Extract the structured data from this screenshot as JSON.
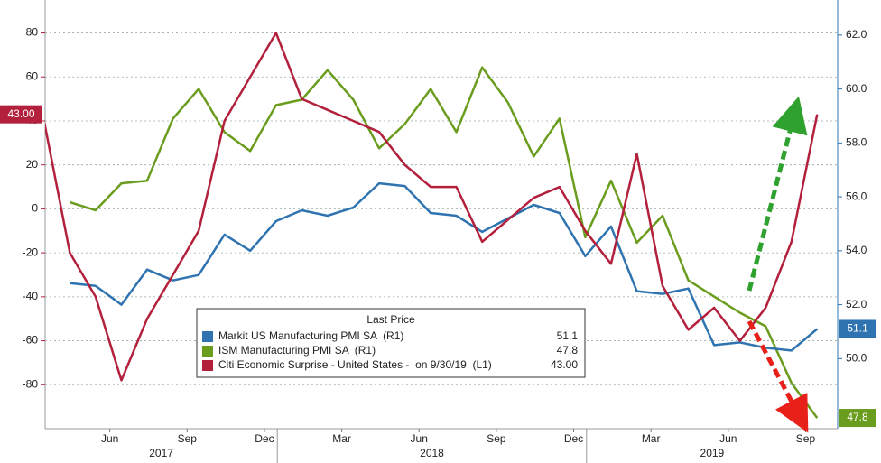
{
  "chart_data": {
    "type": "line",
    "legend_title": "Last Price",
    "x": [
      "2017-03",
      "2017-04",
      "2017-05",
      "2017-06",
      "2017-07",
      "2017-08",
      "2017-09",
      "2017-10",
      "2017-11",
      "2017-12",
      "2018-01",
      "2018-02",
      "2018-03",
      "2018-04",
      "2018-05",
      "2018-06",
      "2018-07",
      "2018-08",
      "2018-09",
      "2018-10",
      "2018-11",
      "2018-12",
      "2019-01",
      "2019-02",
      "2019-03",
      "2019-04",
      "2019-05",
      "2019-06",
      "2019-07",
      "2019-08",
      "2019-09"
    ],
    "xlim": [
      "2017-03",
      "2019-10"
    ],
    "xticks": [
      {
        "value": "2017-06",
        "label": "Jun"
      },
      {
        "value": "2017-09",
        "label": "Sep"
      },
      {
        "value": "2017-12",
        "label": "Dec"
      },
      {
        "value": "2018-03",
        "label": "Mar"
      },
      {
        "value": "2018-06",
        "label": "Jun"
      },
      {
        "value": "2018-09",
        "label": "Sep"
      },
      {
        "value": "2018-12",
        "label": "Dec"
      },
      {
        "value": "2019-03",
        "label": "Mar"
      },
      {
        "value": "2019-06",
        "label": "Jun"
      },
      {
        "value": "2019-09",
        "label": "Sep"
      }
    ],
    "years": [
      "2017",
      "2018",
      "2019"
    ],
    "ylim": [
      -100,
      95
    ],
    "yticks": [
      -80,
      -60,
      -40,
      -20,
      0,
      20,
      40,
      60,
      80
    ],
    "y2lim": [
      47.4,
      63.3
    ],
    "y2ticks": [
      {
        "value": 50,
        "label": "50.0"
      },
      {
        "value": 52,
        "label": "52.0"
      },
      {
        "value": 54,
        "label": "54.0"
      },
      {
        "value": 56,
        "label": "56.0"
      },
      {
        "value": 58,
        "label": "58.0"
      },
      {
        "value": 60,
        "label": "60.0"
      },
      {
        "value": 62,
        "label": "62.0"
      }
    ],
    "grid": true,
    "series": [
      {
        "name": "Markit US Manufacturing PMI SA  (R1)",
        "color": "#2f74b0",
        "axis": "y2",
        "last_price": 51.1,
        "values": [
          null,
          52.8,
          52.7,
          52.0,
          53.3,
          52.9,
          53.1,
          54.6,
          54.0,
          55.1,
          55.5,
          55.3,
          55.6,
          56.5,
          56.4,
          55.4,
          55.3,
          54.7,
          55.2,
          55.7,
          55.4,
          53.8,
          54.9,
          52.5,
          52.4,
          52.6,
          50.5,
          50.6,
          50.4,
          50.3,
          51.1
        ]
      },
      {
        "name": "ISM Manufacturing PMI SA  (R1)",
        "color": "#6a9c1e",
        "axis": "y2",
        "last_price": 47.8,
        "values": [
          null,
          55.8,
          55.5,
          56.5,
          56.6,
          58.9,
          60.0,
          58.4,
          57.7,
          59.4,
          59.6,
          60.7,
          59.6,
          57.8,
          58.7,
          60.0,
          58.4,
          60.8,
          59.5,
          57.5,
          58.9,
          54.5,
          56.6,
          54.3,
          55.3,
          52.9,
          52.3,
          51.7,
          51.2,
          49.1,
          47.8
        ]
      },
      {
        "name": "Citi Economic Surprise - United States -  on 9/30/19  (L1)",
        "color": "#b3203c",
        "axis": "y",
        "last_price": "43.00",
        "values": [
          40,
          -20,
          -40,
          -78,
          -50,
          -30,
          -10,
          40,
          60,
          80,
          50,
          45,
          40,
          35,
          20,
          10,
          10,
          -15,
          -5,
          5,
          10,
          -10,
          -25,
          25,
          -35,
          -55,
          -45,
          -60,
          -45,
          -15,
          43
        ]
      }
    ]
  }
}
